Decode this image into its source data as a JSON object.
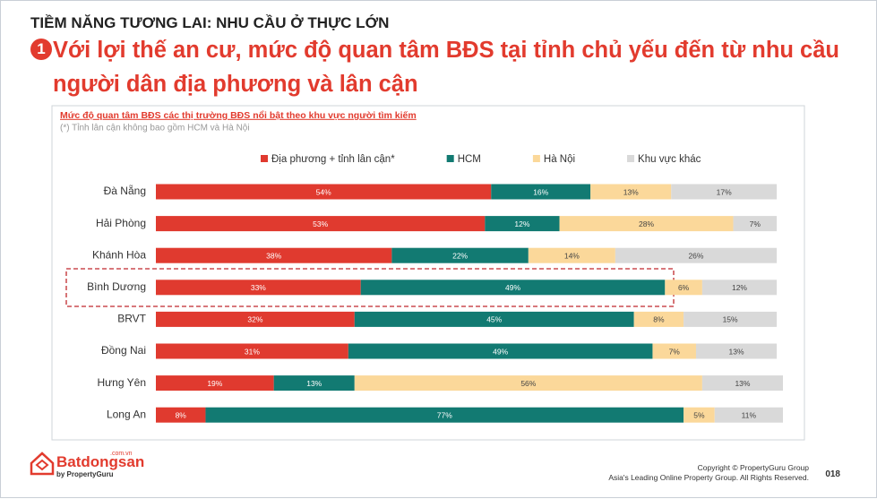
{
  "slide": {
    "header": "TIỀM NĂNG TƯƠNG LAI: NHU CẦU Ở THỰC LỚN",
    "badge": "1",
    "headline": "Với lợi thế an cư, mức độ quan tâm BĐS tại tỉnh chủ yếu đến từ nhu cầu người dân địa phương và lân cận",
    "logo": "Batdongsan",
    "logo_domain": ".com.vn",
    "logo_by": "by PropertyGuru",
    "copyright": "Copyright © PropertyGuru Group",
    "rights": "Asia's Leading Online Property Group. All Rights Reserved.",
    "page": "018"
  },
  "chart_data": {
    "type": "stacked-bar-horizontal",
    "title": "Mức độ quan tâm BĐS các thị trường BĐS nổi bật theo khu vực người tìm kiếm",
    "subtitle": "(*) Tỉnh lân cận không bao gồm HCM và Hà Nội",
    "categories": [
      "Đà Nẵng",
      "Hải Phòng",
      "Khánh Hòa",
      "Bình Dương",
      "BRVT",
      "Đồng Nai",
      "Hưng Yên",
      "Long An"
    ],
    "series": [
      {
        "name": "Địa phương + tỉnh lân cận*",
        "color": "#e03a2f",
        "values": [
          54,
          53,
          38,
          33,
          32,
          31,
          19,
          8
        ],
        "value_labels": [
          "54%",
          "53%",
          "38%",
          "33%",
          "32%",
          "31%",
          "19%",
          "8%"
        ]
      },
      {
        "name": "HCM",
        "color": "#127a72",
        "values": [
          16,
          12,
          22,
          49,
          45,
          49,
          13,
          77
        ],
        "value_labels": [
          "16%",
          "12%",
          "22%",
          "49%",
          "45%",
          "49%",
          "13%",
          "77%"
        ]
      },
      {
        "name": "Hà Nội",
        "color": "#fbd89a",
        "values": [
          13,
          28,
          14,
          6,
          8,
          7,
          56,
          5
        ],
        "value_labels": [
          "13%",
          "28%",
          "14%",
          "6%",
          "8%",
          "7%",
          "56%",
          "5%"
        ]
      },
      {
        "name": "Khu vực khác",
        "color": "#d9d9d9",
        "values": [
          17,
          7,
          26,
          12,
          15,
          13,
          13,
          11
        ],
        "value_labels": [
          "17%",
          "7%",
          "26%",
          "12%",
          "15%",
          "13%",
          "13%",
          "11%"
        ]
      }
    ]
  }
}
